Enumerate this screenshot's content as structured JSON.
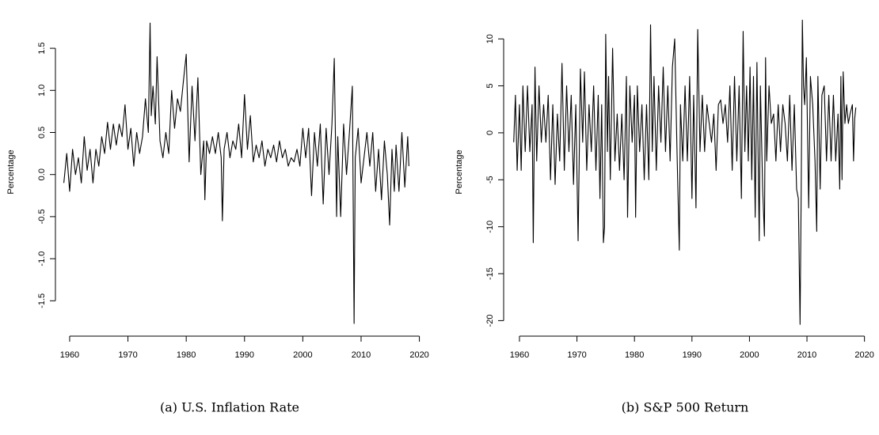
{
  "chart_data": [
    {
      "type": "line",
      "title": "(a) U.S. Inflation Rate",
      "ylabel": "Percentage",
      "color": "#000000",
      "x": [
        1959.0,
        1959.5,
        1960.0,
        1960.5,
        1961.0,
        1961.5,
        1962.0,
        1962.5,
        1963.0,
        1963.5,
        1964.0,
        1964.5,
        1965.0,
        1965.5,
        1966.0,
        1966.5,
        1967.0,
        1967.5,
        1968.0,
        1968.5,
        1969.0,
        1969.5,
        1970.0,
        1970.5,
        1971.0,
        1971.5,
        1972.0,
        1972.5,
        1973.0,
        1973.5,
        1973.8,
        1974.0,
        1974.3,
        1974.7,
        1975.0,
        1975.5,
        1976.0,
        1976.5,
        1977.0,
        1977.5,
        1978.0,
        1978.5,
        1979.0,
        1979.5,
        1980.0,
        1980.5,
        1981.0,
        1981.5,
        1982.0,
        1982.5,
        1983.0,
        1983.2,
        1983.5,
        1984.0,
        1984.5,
        1985.0,
        1985.5,
        1986.0,
        1986.2,
        1986.5,
        1987.0,
        1987.5,
        1988.0,
        1988.5,
        1989.0,
        1989.5,
        1990.0,
        1990.5,
        1991.0,
        1991.5,
        1992.0,
        1992.5,
        1993.0,
        1993.5,
        1994.0,
        1994.5,
        1995.0,
        1995.5,
        1996.0,
        1996.5,
        1997.0,
        1997.5,
        1998.0,
        1998.5,
        1999.0,
        1999.5,
        2000.0,
        2000.5,
        2001.0,
        2001.5,
        2002.0,
        2002.5,
        2003.0,
        2003.5,
        2004.0,
        2004.5,
        2005.0,
        2005.4,
        2005.8,
        2006.0,
        2006.5,
        2007.0,
        2007.5,
        2008.0,
        2008.5,
        2008.8,
        2009.0,
        2009.5,
        2010.0,
        2010.5,
        2011.0,
        2011.5,
        2012.0,
        2012.5,
        2013.0,
        2013.5,
        2014.0,
        2014.5,
        2014.9,
        2015.3,
        2015.7,
        2016.0,
        2016.5,
        2017.0,
        2017.5,
        2018.0,
        2018.2
      ],
      "values": [
        -0.1,
        0.25,
        -0.2,
        0.3,
        0.0,
        0.2,
        -0.1,
        0.45,
        0.05,
        0.3,
        -0.1,
        0.3,
        0.1,
        0.45,
        0.25,
        0.62,
        0.3,
        0.6,
        0.35,
        0.6,
        0.45,
        0.83,
        0.3,
        0.55,
        0.1,
        0.5,
        0.25,
        0.45,
        0.9,
        0.5,
        1.8,
        0.7,
        1.05,
        0.6,
        1.4,
        0.4,
        0.2,
        0.5,
        0.25,
        1.0,
        0.55,
        0.9,
        0.75,
        1.1,
        1.43,
        0.15,
        1.05,
        0.4,
        1.15,
        0.0,
        0.4,
        -0.3,
        0.4,
        0.25,
        0.45,
        0.25,
        0.5,
        0.2,
        -0.55,
        0.3,
        0.5,
        0.2,
        0.4,
        0.3,
        0.6,
        0.2,
        0.95,
        0.3,
        0.7,
        0.15,
        0.35,
        0.2,
        0.4,
        0.1,
        0.3,
        0.2,
        0.35,
        0.15,
        0.4,
        0.2,
        0.3,
        0.1,
        0.2,
        0.15,
        0.3,
        0.1,
        0.55,
        0.2,
        0.55,
        -0.25,
        0.5,
        0.1,
        0.6,
        -0.35,
        0.55,
        0.0,
        0.6,
        1.38,
        -0.5,
        0.45,
        -0.5,
        0.6,
        0.0,
        0.5,
        1.05,
        -1.77,
        0.2,
        0.55,
        -0.1,
        0.2,
        0.5,
        0.1,
        0.5,
        -0.2,
        0.3,
        -0.3,
        0.4,
        0.0,
        -0.6,
        0.3,
        -0.2,
        0.35,
        -0.2,
        0.5,
        -0.15,
        0.45,
        0.1
      ],
      "xlim": [
        1957.56,
        2020.6
      ],
      "xticks": [
        1960,
        1970,
        1980,
        1990,
        2000,
        2010,
        2020
      ],
      "ylim": [
        -1.92,
        1.98
      ],
      "yticks": [
        -1.5,
        {
          "value": -1.0,
          "label": "-1.0"
        },
        -0.5,
        {
          "value": 0,
          "label": "0.0"
        },
        0.5,
        {
          "value": 1.0,
          "label": "1.0"
        },
        1.5
      ]
    },
    {
      "type": "line",
      "title": "(b) S&P 500 Return",
      "ylabel": "Percentage",
      "color": "#000000",
      "x": [
        1959.0,
        1959.3,
        1959.6,
        1960.0,
        1960.3,
        1960.6,
        1961.0,
        1961.4,
        1961.8,
        1962.2,
        1962.4,
        1962.7,
        1963.0,
        1963.4,
        1963.8,
        1964.2,
        1964.6,
        1965.0,
        1965.4,
        1965.8,
        1966.2,
        1966.6,
        1967.0,
        1967.4,
        1967.8,
        1968.2,
        1968.6,
        1969.0,
        1969.4,
        1969.8,
        1970.2,
        1970.6,
        1971.0,
        1971.3,
        1971.7,
        1972.1,
        1972.5,
        1972.9,
        1973.3,
        1973.7,
        1974.0,
        1974.3,
        1974.6,
        1974.8,
        1975.0,
        1975.3,
        1975.5,
        1975.8,
        1976.2,
        1976.6,
        1977.0,
        1977.4,
        1977.8,
        1978.2,
        1978.6,
        1978.8,
        1979.2,
        1979.6,
        1980.0,
        1980.2,
        1980.5,
        1980.9,
        1981.3,
        1981.7,
        1982.1,
        1982.5,
        1982.8,
        1983.1,
        1983.4,
        1983.8,
        1984.2,
        1984.6,
        1985.0,
        1985.4,
        1985.8,
        1986.2,
        1986.6,
        1987.0,
        1987.4,
        1987.8,
        1988.0,
        1988.4,
        1988.8,
        1989.2,
        1989.6,
        1990.0,
        1990.3,
        1990.7,
        1991.0,
        1991.4,
        1991.8,
        1992.2,
        1992.6,
        1993.0,
        1993.4,
        1993.8,
        1994.2,
        1994.6,
        1995.0,
        1995.4,
        1995.8,
        1996.2,
        1996.6,
        1997.0,
        1997.4,
        1997.8,
        1998.2,
        1998.6,
        1998.9,
        1999.2,
        1999.5,
        1999.8,
        2000.1,
        2000.4,
        2000.7,
        2001.0,
        2001.3,
        2001.7,
        2001.9,
        2002.3,
        2002.6,
        2002.8,
        2003.0,
        2003.4,
        2003.8,
        2004.2,
        2004.6,
        2005.0,
        2005.4,
        2005.8,
        2006.2,
        2006.6,
        2007.0,
        2007.4,
        2007.8,
        2008.2,
        2008.5,
        2008.8,
        2009.0,
        2009.2,
        2009.4,
        2009.6,
        2009.9,
        2010.3,
        2010.6,
        2011.0,
        2011.4,
        2011.7,
        2011.9,
        2012.3,
        2012.6,
        2013.0,
        2013.4,
        2013.8,
        2014.2,
        2014.6,
        2015.0,
        2015.4,
        2015.7,
        2015.9,
        2016.1,
        2016.3,
        2016.6,
        2016.9,
        2017.2,
        2017.5,
        2017.9,
        2018.1,
        2018.3,
        2018.5
      ],
      "values": [
        -1,
        4,
        -4,
        3,
        -4,
        5,
        -2,
        5,
        -2,
        3,
        -11.7,
        7,
        -3,
        5,
        -1,
        3,
        -1,
        4,
        -5,
        3,
        -5.5,
        2,
        -3,
        7.4,
        -4,
        5,
        -2,
        4,
        -5.5,
        3,
        -11.5,
        6.8,
        -1,
        6.5,
        -4,
        3,
        -2,
        5,
        -4,
        4,
        -7,
        3,
        -11.7,
        -10,
        10.5,
        -2,
        6,
        -5,
        9,
        -3,
        2,
        -4,
        2,
        -5,
        6,
        -9,
        5,
        -1,
        4,
        -9,
        5,
        -2,
        3,
        -5,
        3,
        -5,
        11.5,
        -2,
        6,
        -4,
        5,
        -1,
        7,
        -2,
        5,
        -3,
        7,
        10,
        -2,
        -12.5,
        3,
        -3,
        5,
        -3,
        6,
        -7,
        4,
        -8,
        11,
        -2,
        4,
        -2,
        3,
        1,
        -1,
        2,
        -4,
        3,
        3.5,
        1,
        3,
        -1,
        5,
        -4,
        6,
        -3,
        5,
        -7,
        10.8,
        -2,
        5,
        -3,
        7,
        -5,
        6,
        -9,
        7.5,
        -11.5,
        5,
        -6,
        -11,
        8,
        -3,
        5,
        1,
        2,
        -3,
        3,
        -2,
        3,
        1,
        -3,
        4,
        -4,
        3,
        -6,
        -7,
        -20.4,
        -6,
        12,
        5,
        3,
        8,
        -8,
        6,
        3,
        -3,
        -10.5,
        6,
        -6,
        4,
        5,
        -3,
        4,
        -3,
        4,
        -3,
        2,
        -6,
        6,
        -5,
        6.5,
        1,
        3,
        1,
        2,
        3,
        -3,
        1.5,
        2.7
      ],
      "xlim": [
        1957.25,
        2020.6
      ],
      "xticks": [
        1960,
        1970,
        1980,
        1990,
        2000,
        2010,
        2020
      ],
      "ylim": [
        -21.65,
        13.3
      ],
      "yticks": [
        -20,
        -15,
        -10,
        -5,
        0,
        5,
        10
      ]
    }
  ]
}
